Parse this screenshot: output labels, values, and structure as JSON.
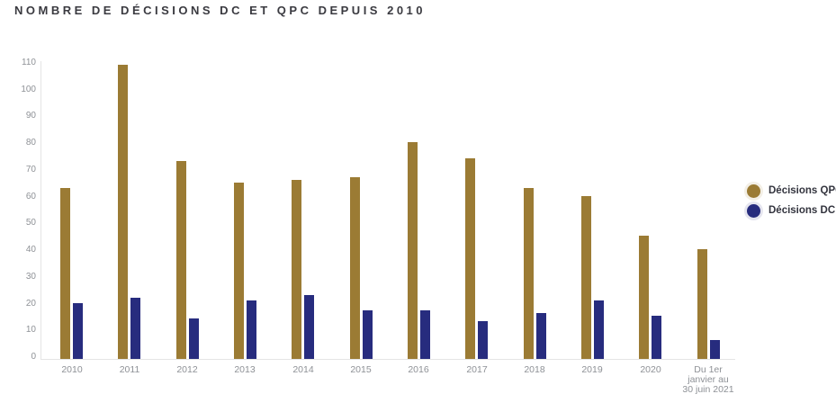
{
  "chart_data": {
    "type": "bar",
    "title": "NOMBRE DE DÉCISIONS DC ET QPC DEPUIS 2010",
    "categories": [
      "2010",
      "2011",
      "2012",
      "2013",
      "2014",
      "2015",
      "2016",
      "2017",
      "2018",
      "2019",
      "2020",
      "Du 1er\njanvier au\n30 juin 2021"
    ],
    "series": [
      {
        "name": "Décisions QPC",
        "color": "#9B7B34",
        "values": [
          64,
          110,
          74,
          66,
          67,
          68,
          81,
          75,
          64,
          61,
          46,
          41
        ]
      },
      {
        "name": "Décisions DC",
        "color": "#272C7E",
        "values": [
          21,
          23,
          15,
          22,
          24,
          18,
          18,
          14,
          17,
          22,
          16,
          7
        ]
      }
    ],
    "yticks": [
      0,
      10,
      20,
      30,
      40,
      50,
      60,
      70,
      80,
      90,
      100,
      110
    ],
    "ylim": [
      0,
      110
    ],
    "xlabel": "",
    "ylabel": "",
    "grid": false,
    "legend_position": "right",
    "colors": {
      "background": "#ffffff",
      "title_text": "#3a3a40",
      "axis_line": "#e4e4e4",
      "tick_text": "#8e9196",
      "legend_text": "#33343e"
    }
  }
}
